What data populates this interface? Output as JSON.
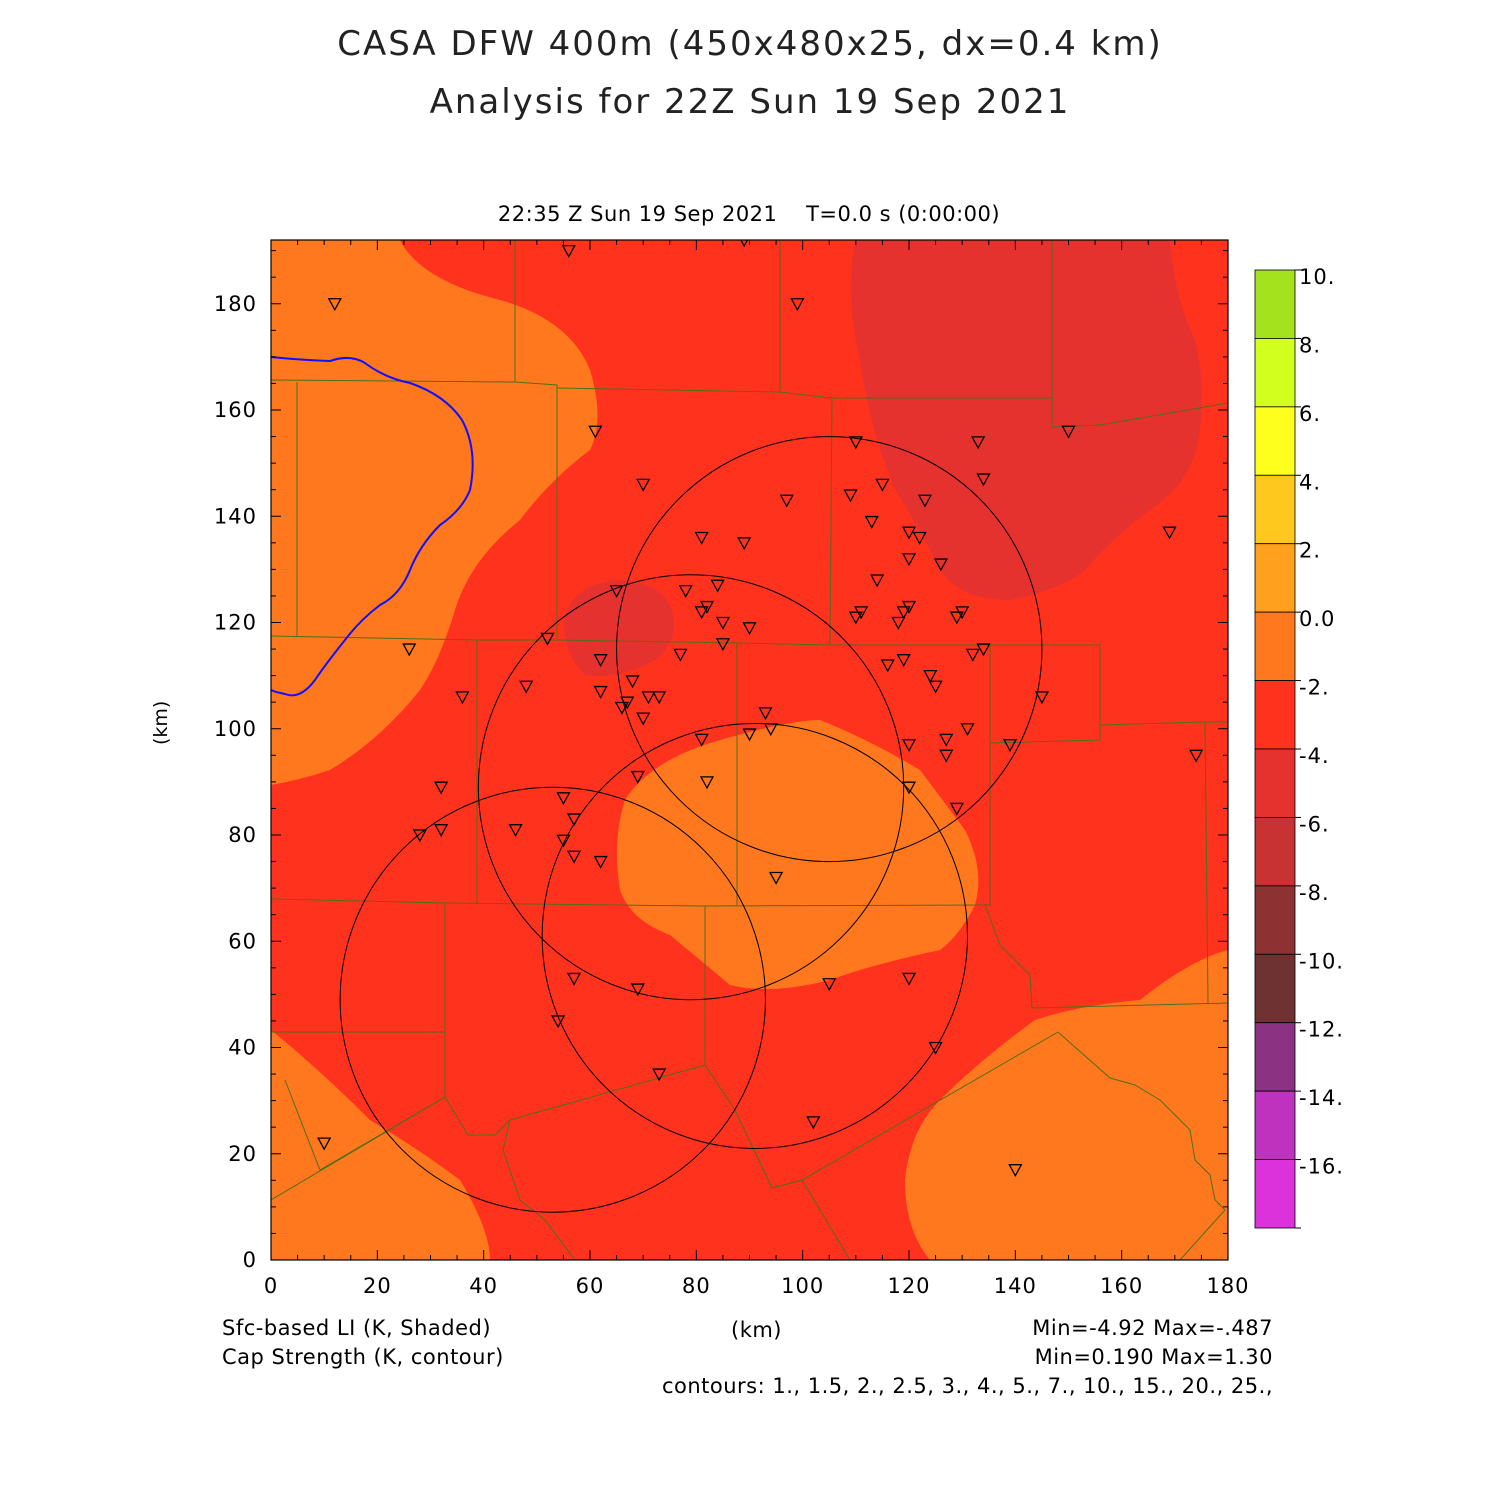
{
  "title_line1": "CASA DFW 400m (450x480x25, dx=0.4 km)",
  "title_line2": "Analysis for 22Z Sun 19 Sep 2021",
  "valid_time": "22:35 Z Sun 19 Sep 2021",
  "model_time": "T=0.0 s (0:00:00)",
  "xlabel": "(km)",
  "ylabel": "(km)",
  "footer": {
    "field1": "Sfc-based LI (K, Shaded)",
    "field2": "Cap Strength (K, contour)",
    "field1_minmax": "Min=-4.92 Max=-.487",
    "field2_minmax": "Min=0.190 Max=1.30",
    "contours": "contours: 1., 1.5, 2., 2.5, 3., 4., 5., 7., 10., 15., 20., 25.,"
  },
  "chart_data": {
    "type": "heatmap",
    "xlim": [
      0,
      180
    ],
    "ylim": [
      0,
      192
    ],
    "x_ticks": [
      "0",
      "20",
      "40",
      "60",
      "80",
      "100",
      "120",
      "140",
      "160",
      "180"
    ],
    "y_ticks": [
      "0",
      "20",
      "40",
      "60",
      "80",
      "100",
      "120",
      "140",
      "160",
      "180"
    ],
    "colorbar": {
      "labels": [
        "10.",
        "8.",
        "6.",
        "4.",
        "2.",
        "0.0",
        "-2.",
        "-4.",
        "-6.",
        "-8.",
        "-10.",
        "-12.",
        "-14.",
        "-16."
      ],
      "colors": [
        "#a4e21e",
        "#d2ff1e",
        "#ffff1e",
        "#ffc81e",
        "#ffa01e",
        "#ff781e",
        "#ff321e",
        "#e6322f",
        "#c83232",
        "#8c3232",
        "#6e3232",
        "#8c3282",
        "#be32be",
        "#dc32dc"
      ]
    },
    "radar_rings_km": [
      {
        "cx": 105,
        "cy": 115,
        "r": 40
      },
      {
        "cx": 79,
        "cy": 89,
        "r": 40
      },
      {
        "cx": 91,
        "cy": 61,
        "r": 40
      },
      {
        "cx": 53,
        "cy": 49,
        "r": 40
      }
    ],
    "stations_km": [
      [
        56,
        190
      ],
      [
        89,
        192
      ],
      [
        12,
        180
      ],
      [
        99,
        180
      ],
      [
        61,
        156
      ],
      [
        110,
        154
      ],
      [
        133,
        154
      ],
      [
        150,
        156
      ],
      [
        70,
        146
      ],
      [
        115,
        146
      ],
      [
        134,
        147
      ],
      [
        97,
        143
      ],
      [
        109,
        144
      ],
      [
        123,
        143
      ],
      [
        169,
        137
      ],
      [
        81,
        136
      ],
      [
        89,
        135
      ],
      [
        113,
        139
      ],
      [
        120,
        137
      ],
      [
        122,
        136
      ],
      [
        120,
        132
      ],
      [
        126,
        131
      ],
      [
        114,
        128
      ],
      [
        65,
        126
      ],
      [
        78,
        126
      ],
      [
        84,
        127
      ],
      [
        81,
        122
      ],
      [
        82,
        123
      ],
      [
        85,
        120
      ],
      [
        90,
        119
      ],
      [
        111,
        122
      ],
      [
        110,
        121
      ],
      [
        120,
        123
      ],
      [
        119,
        122
      ],
      [
        118,
        120
      ],
      [
        129,
        121
      ],
      [
        130,
        122
      ],
      [
        52,
        117
      ],
      [
        26,
        115
      ],
      [
        62,
        113
      ],
      [
        85,
        116
      ],
      [
        77,
        114
      ],
      [
        116,
        112
      ],
      [
        119,
        113
      ],
      [
        132,
        114
      ],
      [
        134,
        115
      ],
      [
        124,
        110
      ],
      [
        125,
        108
      ],
      [
        68,
        109
      ],
      [
        48,
        108
      ],
      [
        62,
        107
      ],
      [
        36,
        106
      ],
      [
        66,
        104
      ],
      [
        67,
        105
      ],
      [
        71,
        106
      ],
      [
        73,
        106
      ],
      [
        145,
        106
      ],
      [
        70,
        102
      ],
      [
        93,
        103
      ],
      [
        94,
        100
      ],
      [
        131,
        100
      ],
      [
        81,
        98
      ],
      [
        90,
        99
      ],
      [
        120,
        97
      ],
      [
        127,
        98
      ],
      [
        139,
        97
      ],
      [
        174,
        95
      ],
      [
        127,
        95
      ],
      [
        69,
        91
      ],
      [
        82,
        90
      ],
      [
        32,
        89
      ],
      [
        120,
        89
      ],
      [
        55,
        87
      ],
      [
        46,
        81
      ],
      [
        32,
        81
      ],
      [
        28,
        80
      ],
      [
        55,
        79
      ],
      [
        57,
        83
      ],
      [
        57,
        76
      ],
      [
        62,
        75
      ],
      [
        129,
        85
      ],
      [
        95,
        72
      ],
      [
        57,
        53
      ],
      [
        69,
        51
      ],
      [
        105,
        52
      ],
      [
        120,
        53
      ],
      [
        54,
        45
      ],
      [
        125,
        40
      ],
      [
        73,
        35
      ],
      [
        102,
        26
      ],
      [
        10,
        22
      ],
      [
        140,
        17
      ]
    ],
    "river_name": ""
  }
}
